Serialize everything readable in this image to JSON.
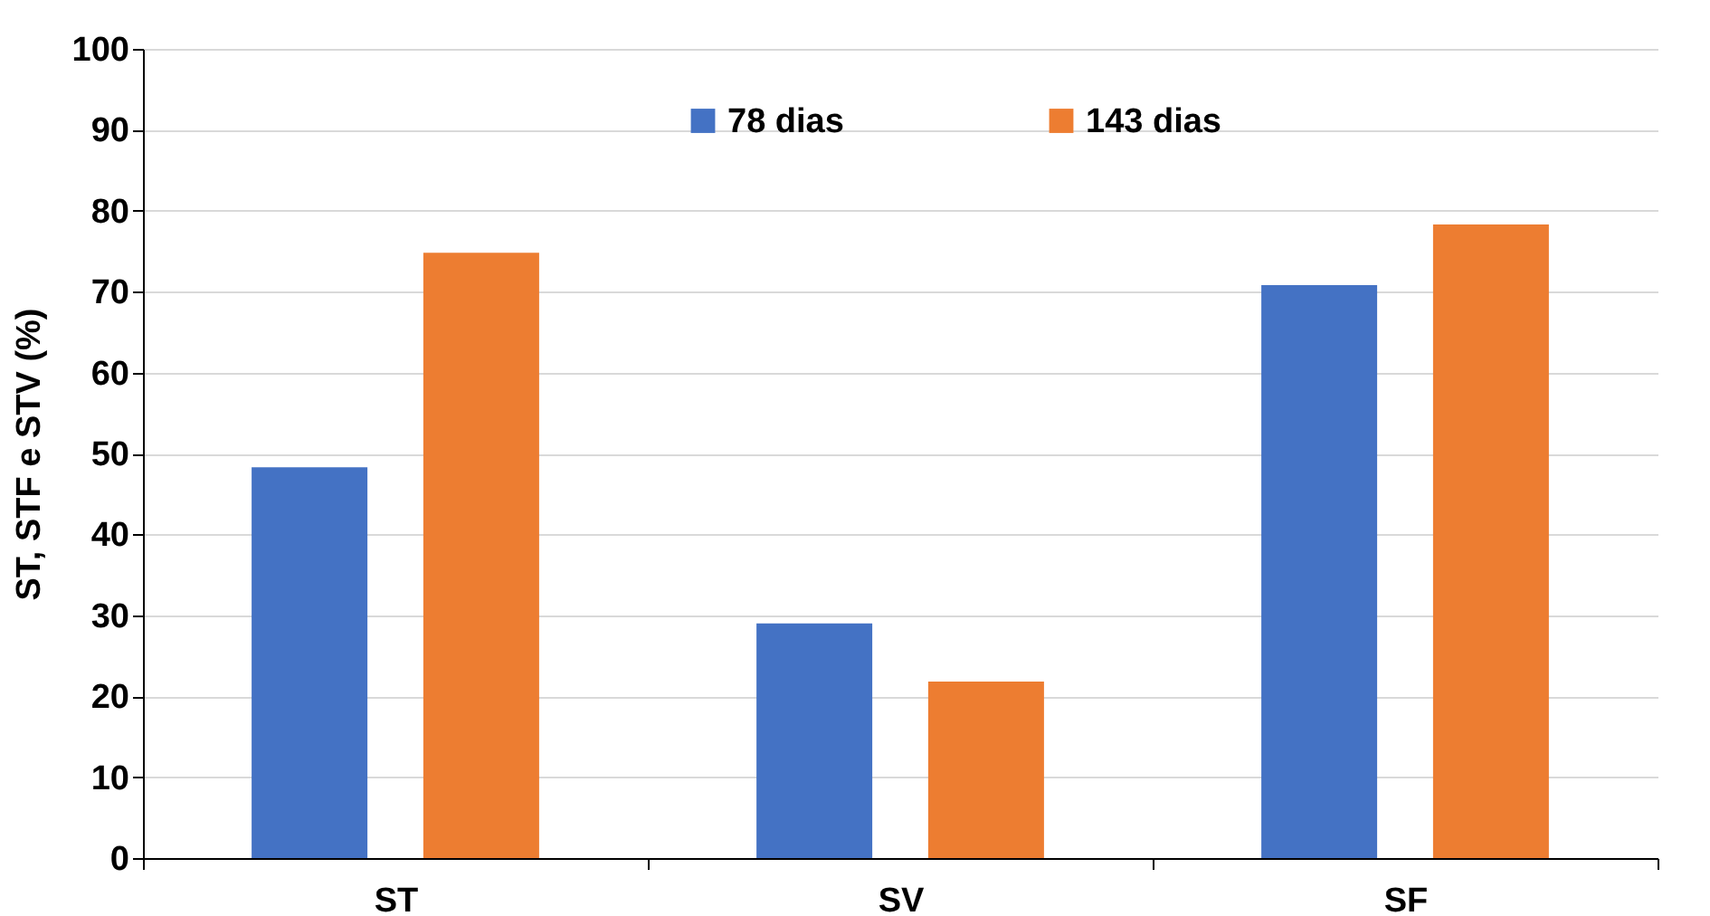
{
  "chart_data": {
    "type": "bar",
    "ylabel": "ST,  STF e STV (%)",
    "categories": [
      "ST",
      "SV",
      "SF"
    ],
    "series": [
      {
        "name": "78 dias",
        "color": "#4472c4",
        "values": [
          48.3,
          29,
          70.8
        ]
      },
      {
        "name": "143 dias",
        "color": "#ed7d31",
        "values": [
          74.8,
          21.8,
          78.3
        ]
      }
    ],
    "ylim": [
      0,
      100
    ],
    "yticks": [
      0,
      10,
      20,
      30,
      40,
      50,
      60,
      70,
      80,
      90,
      100
    ],
    "grid": "y",
    "legend": "top"
  }
}
